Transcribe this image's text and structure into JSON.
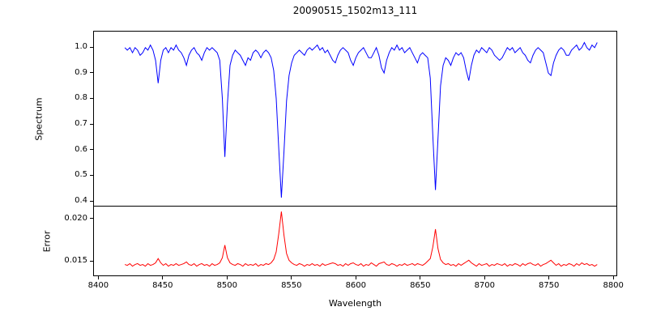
{
  "title": "20090515_1502m13_111",
  "xlabel": "Wavelength",
  "xticks": [
    8400,
    8450,
    8500,
    8550,
    8600,
    8650,
    8700,
    8750,
    8800
  ],
  "xtick_labels": [
    "8400",
    "8450",
    "8500",
    "8550",
    "8600",
    "8650",
    "8700",
    "8750",
    "8800"
  ],
  "colors": {
    "spectrum_line": "#0000ff",
    "error_line": "#ff0000",
    "axis": "#000000",
    "background": "#ffffff"
  },
  "chart_data": [
    {
      "type": "line",
      "name": "spectrum",
      "title": "20090515_1502m13_111",
      "ylabel": "Spectrum",
      "color": "#0000ff",
      "legend": "none",
      "grid": false,
      "xlim": [
        8396,
        8803
      ],
      "ylim": [
        0.378,
        1.063
      ],
      "yticks": [
        0.4,
        0.5,
        0.6,
        0.7,
        0.8,
        0.9,
        1.0
      ],
      "ytick_labels": [
        "0.4",
        "0.5",
        "0.6",
        "0.7",
        "0.8",
        "0.9",
        "1.0"
      ],
      "absorption_lines": [
        {
          "wavelength": 8446,
          "core_flux": 0.86
        },
        {
          "wavelength": 8498,
          "core_flux": 0.57
        },
        {
          "wavelength": 8542,
          "core_flux": 0.41
        },
        {
          "wavelength": 8662,
          "core_flux": 0.44
        },
        {
          "wavelength": 8688,
          "core_flux": 0.87
        },
        {
          "wavelength": 8751,
          "core_flux": 0.89
        }
      ],
      "x_start": 8420,
      "x_step": 2,
      "values": [
        1.0,
        0.99,
        1.0,
        0.98,
        1.0,
        0.99,
        0.97,
        0.98,
        1.0,
        0.99,
        1.01,
        0.99,
        0.95,
        0.86,
        0.95,
        0.99,
        1.0,
        0.98,
        1.0,
        0.99,
        1.01,
        0.99,
        0.98,
        0.96,
        0.93,
        0.97,
        0.99,
        1.0,
        0.98,
        0.97,
        0.95,
        0.98,
        1.0,
        0.99,
        1.0,
        0.99,
        0.98,
        0.95,
        0.8,
        0.57,
        0.78,
        0.93,
        0.97,
        0.99,
        0.98,
        0.97,
        0.95,
        0.93,
        0.96,
        0.95,
        0.98,
        0.99,
        0.98,
        0.96,
        0.98,
        0.99,
        0.98,
        0.96,
        0.91,
        0.8,
        0.6,
        0.41,
        0.59,
        0.79,
        0.89,
        0.94,
        0.97,
        0.98,
        0.99,
        0.98,
        0.97,
        0.99,
        1.0,
        0.99,
        1.0,
        1.01,
        0.99,
        1.0,
        0.98,
        0.99,
        0.97,
        0.95,
        0.94,
        0.97,
        0.99,
        1.0,
        0.99,
        0.98,
        0.95,
        0.93,
        0.96,
        0.98,
        0.99,
        1.0,
        0.98,
        0.96,
        0.96,
        0.98,
        1.0,
        0.97,
        0.92,
        0.9,
        0.95,
        0.98,
        1.0,
        0.99,
        1.01,
        0.99,
        1.0,
        0.98,
        0.99,
        1.0,
        0.98,
        0.96,
        0.94,
        0.97,
        0.98,
        0.97,
        0.96,
        0.88,
        0.65,
        0.44,
        0.64,
        0.85,
        0.93,
        0.96,
        0.95,
        0.93,
        0.96,
        0.98,
        0.97,
        0.98,
        0.96,
        0.91,
        0.87,
        0.93,
        0.97,
        0.99,
        0.98,
        1.0,
        0.99,
        0.98,
        1.0,
        0.99,
        0.97,
        0.96,
        0.95,
        0.96,
        0.98,
        1.0,
        0.99,
        1.0,
        0.98,
        0.99,
        1.0,
        0.98,
        0.97,
        0.95,
        0.94,
        0.97,
        0.99,
        1.0,
        0.99,
        0.98,
        0.94,
        0.9,
        0.89,
        0.94,
        0.97,
        0.99,
        1.0,
        0.99,
        0.97,
        0.97,
        0.99,
        1.0,
        1.01,
        0.99,
        1.0,
        1.02,
        1.0,
        0.99,
        1.01,
        1.0,
        1.02
      ]
    },
    {
      "type": "line",
      "name": "error",
      "ylabel": "Error",
      "color": "#ff0000",
      "legend": "none",
      "grid": false,
      "xlim": [
        8396,
        8803
      ],
      "ylim": [
        0.0132,
        0.0214
      ],
      "yticks": [
        0.015,
        0.02
      ],
      "ytick_labels": [
        "0.015",
        "0.020"
      ],
      "error_peaks": [
        {
          "wavelength": 8498,
          "value": 0.0168
        },
        {
          "wavelength": 8542,
          "value": 0.0208
        },
        {
          "wavelength": 8662,
          "value": 0.0187
        }
      ],
      "x_start": 8420,
      "x_step": 2,
      "values": [
        0.0145,
        0.0144,
        0.0146,
        0.0143,
        0.0145,
        0.0146,
        0.0144,
        0.0145,
        0.0143,
        0.0146,
        0.0144,
        0.0145,
        0.0147,
        0.0152,
        0.0147,
        0.0144,
        0.0146,
        0.0143,
        0.0145,
        0.0144,
        0.0146,
        0.0144,
        0.0145,
        0.0146,
        0.0148,
        0.0145,
        0.0144,
        0.0146,
        0.0143,
        0.0145,
        0.0146,
        0.0144,
        0.0145,
        0.0143,
        0.0146,
        0.0144,
        0.0145,
        0.0147,
        0.0153,
        0.0168,
        0.0153,
        0.0147,
        0.0145,
        0.0144,
        0.0146,
        0.0145,
        0.0143,
        0.0146,
        0.0144,
        0.0145,
        0.0144,
        0.0146,
        0.0143,
        0.0145,
        0.0144,
        0.0146,
        0.0145,
        0.0147,
        0.0151,
        0.016,
        0.0182,
        0.0208,
        0.018,
        0.0158,
        0.015,
        0.0147,
        0.0145,
        0.0144,
        0.0146,
        0.0145,
        0.0143,
        0.0145,
        0.0144,
        0.0146,
        0.0144,
        0.0145,
        0.0143,
        0.0146,
        0.0144,
        0.0145,
        0.0146,
        0.0147,
        0.0146,
        0.0144,
        0.0145,
        0.0143,
        0.0146,
        0.0144,
        0.0146,
        0.0147,
        0.0145,
        0.0144,
        0.0146,
        0.0143,
        0.0145,
        0.0144,
        0.0147,
        0.0145,
        0.0143,
        0.0146,
        0.0147,
        0.0148,
        0.0145,
        0.0144,
        0.0146,
        0.0145,
        0.0143,
        0.0145,
        0.0144,
        0.0146,
        0.0144,
        0.0145,
        0.0146,
        0.0144,
        0.0146,
        0.0145,
        0.0144,
        0.0146,
        0.0149,
        0.0152,
        0.0166,
        0.0187,
        0.0164,
        0.0151,
        0.0147,
        0.0145,
        0.0146,
        0.0144,
        0.0145,
        0.0143,
        0.0146,
        0.0144,
        0.0146,
        0.0148,
        0.015,
        0.0147,
        0.0145,
        0.0143,
        0.0146,
        0.0144,
        0.0145,
        0.0146,
        0.0143,
        0.0145,
        0.0144,
        0.0146,
        0.0145,
        0.0144,
        0.0146,
        0.0143,
        0.0145,
        0.0144,
        0.0146,
        0.0145,
        0.0143,
        0.0146,
        0.0144,
        0.0146,
        0.0147,
        0.0145,
        0.0144,
        0.0146,
        0.0143,
        0.0145,
        0.0146,
        0.0148,
        0.015,
        0.0147,
        0.0144,
        0.0146,
        0.0143,
        0.0145,
        0.0144,
        0.0146,
        0.0145,
        0.0143,
        0.0146,
        0.0144,
        0.0147,
        0.0145,
        0.0146,
        0.0144,
        0.0145,
        0.0143,
        0.0145
      ]
    }
  ]
}
